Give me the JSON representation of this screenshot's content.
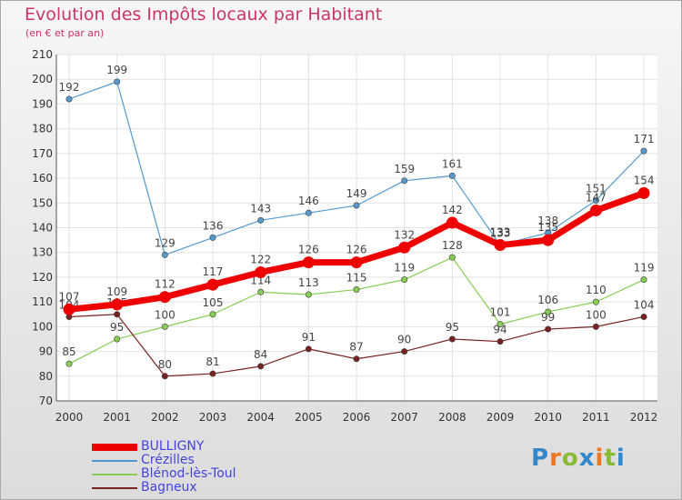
{
  "chart_data": {
    "type": "line",
    "title": "Evolution des Impôts locaux par Habitant",
    "subtitle": "(en € et par an)",
    "xlabel": "",
    "ylabel": "",
    "x": [
      "2000",
      "2001",
      "2002",
      "2003",
      "2004",
      "2005",
      "2006",
      "2007",
      "2008",
      "2009",
      "2010",
      "2011",
      "2012"
    ],
    "ylim": [
      70,
      210
    ],
    "yticks": [
      70,
      80,
      90,
      100,
      110,
      120,
      130,
      140,
      150,
      160,
      170,
      180,
      190,
      200,
      210
    ],
    "grid": true,
    "legend_position": "bottom-left",
    "series": [
      {
        "name": "BULLIGNY",
        "color": "#ee0000",
        "values": [
          107,
          109,
          112,
          117,
          122,
          126,
          126,
          132,
          142,
          133,
          135,
          147,
          154
        ]
      },
      {
        "name": "Crézilles",
        "color": "#5599cc",
        "values": [
          192,
          199,
          129,
          136,
          143,
          146,
          149,
          159,
          161,
          133,
          138,
          151,
          171
        ]
      },
      {
        "name": "Blénod-lès-Toul",
        "color": "#88cc55",
        "values": [
          85,
          95,
          100,
          105,
          114,
          113,
          115,
          119,
          128,
          101,
          106,
          110,
          119
        ]
      },
      {
        "name": "Bagneux",
        "color": "#772222",
        "values": [
          104,
          105,
          80,
          81,
          84,
          91,
          87,
          90,
          95,
          94,
          99,
          100,
          104
        ]
      }
    ]
  },
  "logo": {
    "letters": [
      "P",
      "r",
      "o",
      "x",
      "i",
      "t",
      "i"
    ],
    "colors": [
      "#3388cc",
      "#ee7722",
      "#88bb33",
      "#3388cc",
      "#ee7722",
      "#88bb33",
      "#3388cc"
    ]
  }
}
